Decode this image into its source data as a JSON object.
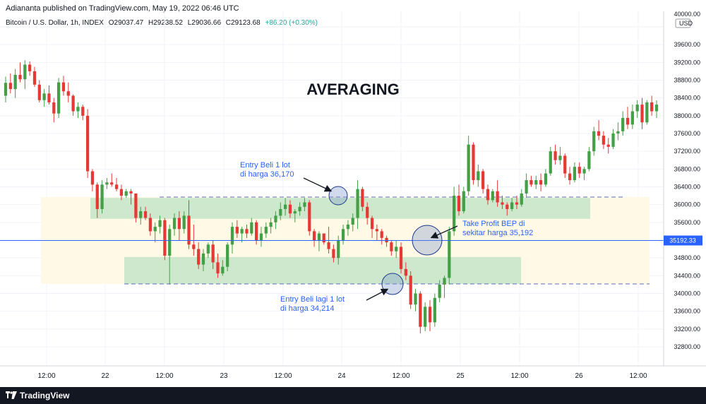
{
  "header": {
    "published_line": "Adiananta published on TradingView.com, May 19, 2022 06:46 UTC",
    "symbol": "Bitcoin / U.S. Dollar, 1h, INDEX",
    "open": "O29037.47",
    "high": "H29238.52",
    "low": "L29036.66",
    "close": "C29123.68",
    "change": "+86.20 (+0.30%)"
  },
  "footer": {
    "brand": "TradingView"
  },
  "colors": {
    "up": "#26a69a",
    "down": "#ef5350",
    "up_body": "#43a047",
    "down_body": "#e53935",
    "zone": "#c8e6c9",
    "zone_outer": "#fff9e6",
    "price_line": "#2962ff",
    "annotation": "#2962ff"
  },
  "chart_data": {
    "type": "candlestick",
    "title": "AVERAGING",
    "currency": "USD",
    "ylim": [
      32500,
      40200
    ],
    "y_ticks": [
      32800,
      33200,
      33600,
      34000,
      34400,
      34800,
      35200,
      35600,
      36000,
      36400,
      36800,
      37200,
      37600,
      38000,
      38400,
      38800,
      39200,
      39600,
      40000
    ],
    "y_tick_labels": [
      "32800.00",
      "33200.00",
      "33600.00",
      "34000.00",
      "34400.00",
      "34800.00",
      "35200.00",
      "35600.00",
      "36000.00",
      "36400.00",
      "36800.00",
      "37200.00",
      "37600.00",
      "38000.00",
      "38400.00",
      "38800.00",
      "39200.00",
      "39600.00",
      "40000.00"
    ],
    "x_labels": [
      "12:00",
      "22",
      "12:00",
      "23",
      "12:00",
      "24",
      "12:00",
      "25",
      "12:00",
      "26",
      "12:00"
    ],
    "price_line": 35192.33,
    "price_label": "35192.33",
    "candles": [
      [
        38450,
        38880,
        38300,
        38740
      ],
      [
        38740,
        38950,
        38500,
        38600
      ],
      [
        38600,
        39050,
        38400,
        38920
      ],
      [
        38920,
        39200,
        38750,
        38820
      ],
      [
        38820,
        39250,
        38600,
        39150
      ],
      [
        39150,
        39220,
        38900,
        39000
      ],
      [
        39000,
        39100,
        38650,
        38700
      ],
      [
        38700,
        38800,
        38300,
        38350
      ],
      [
        38350,
        38600,
        38200,
        38500
      ],
      [
        38500,
        38680,
        38250,
        38300
      ],
      [
        38300,
        38400,
        37850,
        38050
      ],
      [
        38050,
        38850,
        37950,
        38750
      ],
      [
        38750,
        38900,
        38450,
        38550
      ],
      [
        38550,
        38750,
        38300,
        38450
      ],
      [
        38450,
        38480,
        38000,
        38100
      ],
      [
        38100,
        38300,
        37950,
        38200
      ],
      [
        38200,
        38250,
        37900,
        38000
      ],
      [
        38000,
        38150,
        36600,
        36750
      ],
      [
        36750,
        36800,
        36300,
        36450
      ],
      [
        36450,
        36500,
        35700,
        35900
      ],
      [
        35900,
        36550,
        35800,
        36450
      ],
      [
        36450,
        36600,
        36350,
        36500
      ],
      [
        36500,
        36700,
        36400,
        36450
      ],
      [
        36450,
        36600,
        36300,
        36350
      ],
      [
        36350,
        36450,
        36100,
        36200
      ],
      [
        36200,
        36350,
        36150,
        36300
      ],
      [
        36300,
        36350,
        36000,
        36250
      ],
      [
        36250,
        36250,
        35600,
        35700
      ],
      [
        35700,
        35950,
        35550,
        35850
      ],
      [
        35850,
        35950,
        35650,
        35700
      ],
      [
        35700,
        35800,
        35300,
        35400
      ],
      [
        35400,
        35600,
        35150,
        35500
      ],
      [
        35500,
        35750,
        35350,
        35650
      ],
      [
        35650,
        35700,
        34750,
        34850
      ],
      [
        34850,
        35550,
        34200,
        35450
      ],
      [
        35450,
        35800,
        35300,
        35700
      ],
      [
        35700,
        35850,
        35200,
        35450
      ],
      [
        35450,
        35850,
        35350,
        35750
      ],
      [
        35750,
        36100,
        35000,
        35100
      ],
      [
        35100,
        35550,
        34850,
        35000
      ],
      [
        35000,
        35150,
        34550,
        34650
      ],
      [
        34650,
        35000,
        34500,
        34900
      ],
      [
        34900,
        35150,
        34800,
        35100
      ],
      [
        35100,
        35200,
        34550,
        34700
      ],
      [
        34700,
        34900,
        34350,
        34450
      ],
      [
        34450,
        34750,
        34400,
        34600
      ],
      [
        34600,
        35150,
        34500,
        35100
      ],
      [
        35100,
        35600,
        34900,
        35500
      ],
      [
        35500,
        35650,
        35250,
        35350
      ],
      [
        35350,
        35500,
        35150,
        35450
      ],
      [
        35450,
        35550,
        35250,
        35350
      ],
      [
        35350,
        35700,
        35300,
        35600
      ],
      [
        35600,
        35650,
        35100,
        35200
      ],
      [
        35200,
        35500,
        35050,
        35350
      ],
      [
        35350,
        35600,
        35250,
        35500
      ],
      [
        35500,
        35700,
        35350,
        35600
      ],
      [
        35600,
        35850,
        35450,
        35750
      ],
      [
        35750,
        36050,
        35650,
        35900
      ],
      [
        35900,
        36150,
        35750,
        36000
      ],
      [
        36000,
        36100,
        35700,
        35800
      ],
      [
        35800,
        35900,
        35600,
        35850
      ],
      [
        35850,
        36050,
        35750,
        35950
      ],
      [
        35950,
        36150,
        35850,
        36050
      ],
      [
        36050,
        36100,
        35300,
        35400
      ],
      [
        35400,
        35450,
        35050,
        35200
      ],
      [
        35200,
        35400,
        34950,
        35350
      ],
      [
        35350,
        35350,
        35100,
        35150
      ],
      [
        35150,
        35500,
        34900,
        35000
      ],
      [
        35000,
        35100,
        34700,
        34800
      ],
      [
        34800,
        35300,
        34650,
        35200
      ],
      [
        35200,
        35550,
        35100,
        35450
      ],
      [
        35450,
        35650,
        35300,
        35550
      ],
      [
        35550,
        35800,
        35400,
        35700
      ],
      [
        35700,
        36550,
        35450,
        36350
      ],
      [
        36350,
        36400,
        35850,
        35950
      ],
      [
        35950,
        36050,
        35550,
        35700
      ],
      [
        35700,
        35750,
        35250,
        35450
      ],
      [
        35450,
        35550,
        35200,
        35400
      ],
      [
        35400,
        35450,
        35100,
        35250
      ],
      [
        35250,
        35300,
        35050,
        35150
      ],
      [
        35150,
        35200,
        34850,
        34950
      ],
      [
        34950,
        35200,
        34800,
        35050
      ],
      [
        35050,
        35150,
        34450,
        34550
      ],
      [
        34550,
        34700,
        34300,
        34400
      ],
      [
        34400,
        34500,
        33650,
        33750
      ],
      [
        33750,
        34100,
        33600,
        34000
      ],
      [
        34000,
        34050,
        33100,
        33250
      ],
      [
        33250,
        33800,
        33150,
        33700
      ],
      [
        33700,
        33850,
        33150,
        33350
      ],
      [
        33350,
        34000,
        33250,
        33900
      ],
      [
        33900,
        34300,
        33800,
        34200
      ],
      [
        34200,
        34400,
        33900,
        34350
      ],
      [
        34350,
        35500,
        34200,
        35400
      ],
      [
        35400,
        36400,
        35300,
        36200
      ],
      [
        36200,
        36450,
        35750,
        35850
      ],
      [
        35850,
        36400,
        35800,
        36300
      ],
      [
        36300,
        37550,
        36200,
        37350
      ],
      [
        37350,
        37400,
        36450,
        36550
      ],
      [
        36550,
        36900,
        36400,
        36750
      ],
      [
        36750,
        36800,
        36250,
        36350
      ],
      [
        36350,
        36450,
        36000,
        36100
      ],
      [
        36100,
        36350,
        36050,
        36300
      ],
      [
        36300,
        36550,
        35950,
        36050
      ],
      [
        36050,
        36200,
        35900,
        36000
      ],
      [
        36000,
        36050,
        35750,
        35900
      ],
      [
        35900,
        36150,
        35850,
        36050
      ],
      [
        36050,
        36200,
        35900,
        36000
      ],
      [
        36000,
        36350,
        35950,
        36250
      ],
      [
        36250,
        36700,
        36150,
        36550
      ],
      [
        36550,
        36650,
        36400,
        36450
      ],
      [
        36450,
        36650,
        36350,
        36550
      ],
      [
        36550,
        36700,
        36300,
        36450
      ],
      [
        36450,
        36800,
        36400,
        36700
      ],
      [
        36700,
        37300,
        36650,
        37200
      ],
      [
        37200,
        37350,
        36900,
        37000
      ],
      [
        37000,
        37300,
        36900,
        37100
      ],
      [
        37100,
        37150,
        36600,
        36700
      ],
      [
        36700,
        36850,
        36450,
        36550
      ],
      [
        36550,
        36950,
        36500,
        36850
      ],
      [
        36850,
        36950,
        36600,
        36700
      ],
      [
        36700,
        36850,
        36550,
        36800
      ],
      [
        36800,
        37300,
        36750,
        37200
      ],
      [
        37200,
        37750,
        37100,
        37650
      ],
      [
        37650,
        37900,
        37450,
        37550
      ],
      [
        37550,
        37650,
        37250,
        37350
      ],
      [
        37350,
        37500,
        37150,
        37300
      ],
      [
        37300,
        37700,
        37250,
        37600
      ],
      [
        37600,
        37850,
        37450,
        37650
      ],
      [
        37650,
        38100,
        37550,
        37950
      ],
      [
        37950,
        38200,
        37700,
        37800
      ],
      [
        37800,
        38250,
        37700,
        38100
      ],
      [
        38100,
        38350,
        37950,
        38250
      ],
      [
        38250,
        38400,
        37700,
        37850
      ],
      [
        37850,
        38350,
        37800,
        38300
      ],
      [
        38300,
        38450,
        38000,
        38100
      ],
      [
        38100,
        38350,
        37950,
        38250
      ]
    ],
    "zones": [
      {
        "name": "upper-zone",
        "from": 35680,
        "to": 36150
      },
      {
        "name": "lower-zone",
        "from": 34214,
        "to": 34820
      },
      {
        "name": "outer-zone",
        "from": 34214,
        "to": 36170
      }
    ],
    "dashed_levels": [
      36170,
      34214
    ],
    "annotations": {
      "entry1": [
        "Entry Beli 1 lot",
        "di harga 36,170"
      ],
      "entry2": [
        "Entry Beli lagi 1 lot",
        "di harga 34,214"
      ],
      "take_profit": [
        "Take Profit BEP di",
        "sekitar harga 35,192"
      ]
    }
  }
}
